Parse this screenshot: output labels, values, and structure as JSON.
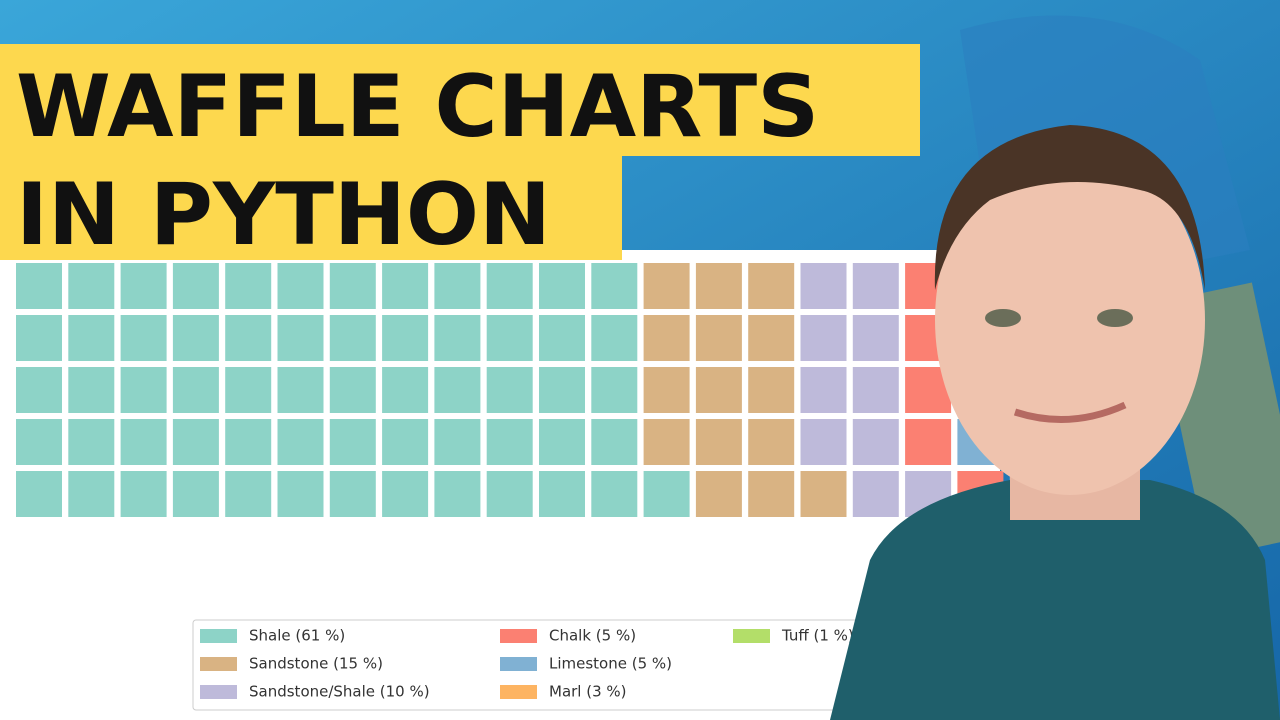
{
  "thumbnail": {
    "title_lines": [
      "WAFFLE CHARTS",
      "IN PYTHON"
    ]
  },
  "chart_data": {
    "type": "waffle",
    "rows": 5,
    "columns": 20,
    "categories": [
      "Shale (61 %)",
      "Sandstone (15 %)",
      "Sandstone/Shale (10 %)",
      "Chalk (5 %)",
      "Limestone (5 %)",
      "Marl (3 %)",
      "Tuff (1 %)"
    ],
    "values": [
      61,
      15,
      10,
      5,
      5,
      3,
      1
    ],
    "colors": [
      "#8dd3c7",
      "#d9b383",
      "#bebada",
      "#fb8072",
      "#80b1d3",
      "#fdb462",
      "#b3de69"
    ]
  }
}
